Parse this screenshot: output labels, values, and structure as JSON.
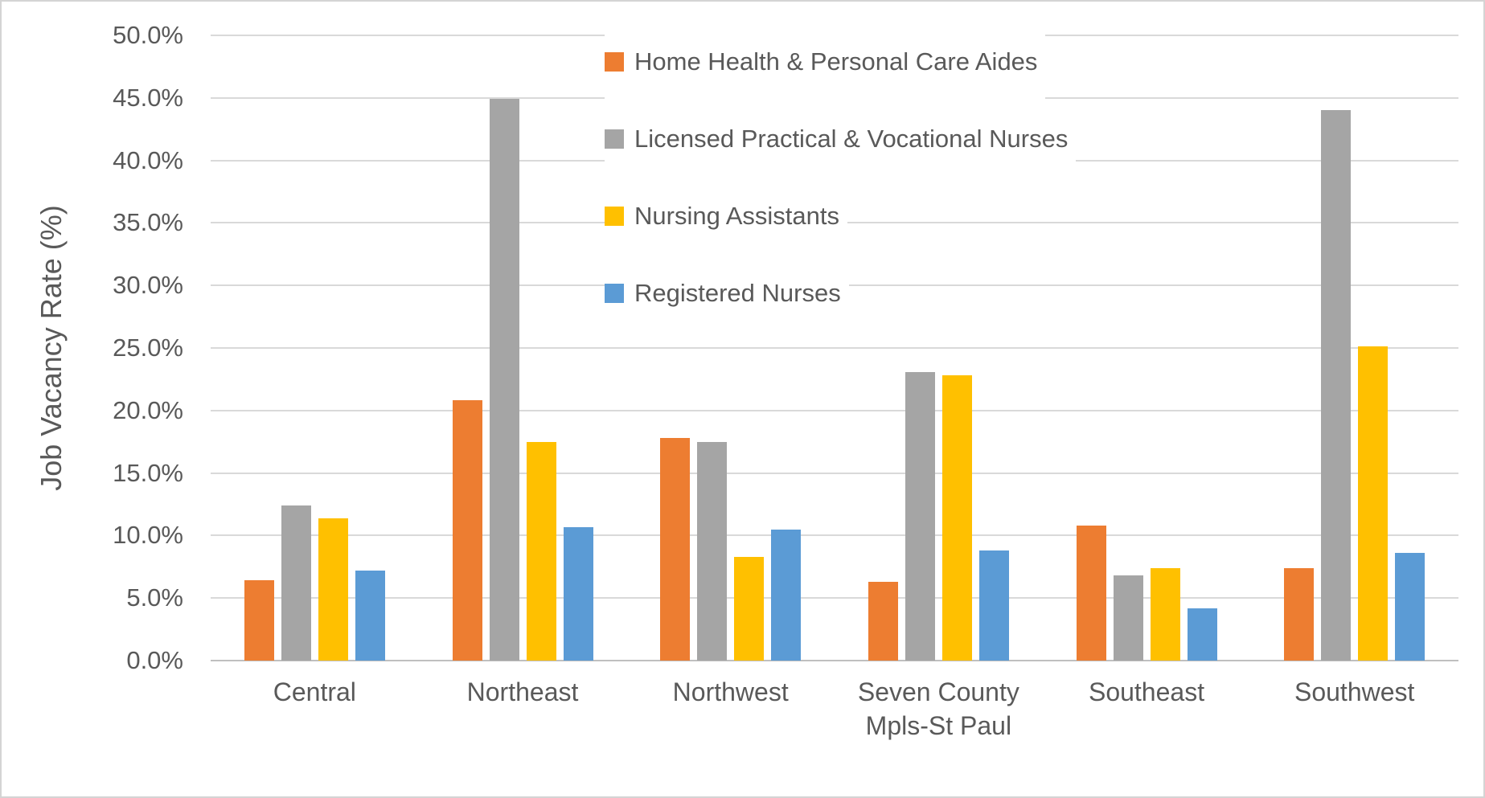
{
  "chart_data": {
    "type": "bar",
    "title": "",
    "ylabel": "Job Vacancy Rate (%)",
    "ymax": 50,
    "ylim": [
      0,
      50
    ],
    "grid": true,
    "legend_position": "top-center-inside",
    "ytick_values": [
      50,
      45,
      40,
      35,
      30,
      25,
      20,
      15,
      10,
      5,
      0
    ],
    "ytick_labels": [
      "50.0%",
      "45.0%",
      "40.0%",
      "35.0%",
      "30.0%",
      "25.0%",
      "20.0%",
      "15.0%",
      "10.0%",
      "5.0%",
      "0.0%"
    ],
    "categories": [
      "Central",
      "Northeast",
      "Northwest",
      "Seven County Mpls-St Paul",
      "Southeast",
      "Southwest"
    ],
    "series": [
      {
        "name": "Home Health & Personal Care Aides",
        "color": "#ED7D31",
        "values": [
          6.4,
          20.8,
          17.8,
          6.3,
          10.8,
          7.4
        ]
      },
      {
        "name": "Licensed Practical & Vocational Nurses",
        "color": "#A5A5A5",
        "values": [
          12.4,
          44.9,
          17.5,
          23.1,
          6.8,
          44.0
        ]
      },
      {
        "name": "Nursing Assistants",
        "color": "#FFC000",
        "values": [
          11.4,
          17.5,
          8.3,
          22.8,
          7.4,
          25.1
        ]
      },
      {
        "name": "Registered Nurses",
        "color": "#5B9BD5",
        "values": [
          7.2,
          10.7,
          10.5,
          8.8,
          4.2,
          8.6
        ]
      }
    ],
    "value_unit": "%",
    "colors": {
      "gridline": "#D9D9D9",
      "axis_line": "#BFBFBF",
      "text": "#595959",
      "background": "#FFFFFF"
    }
  }
}
